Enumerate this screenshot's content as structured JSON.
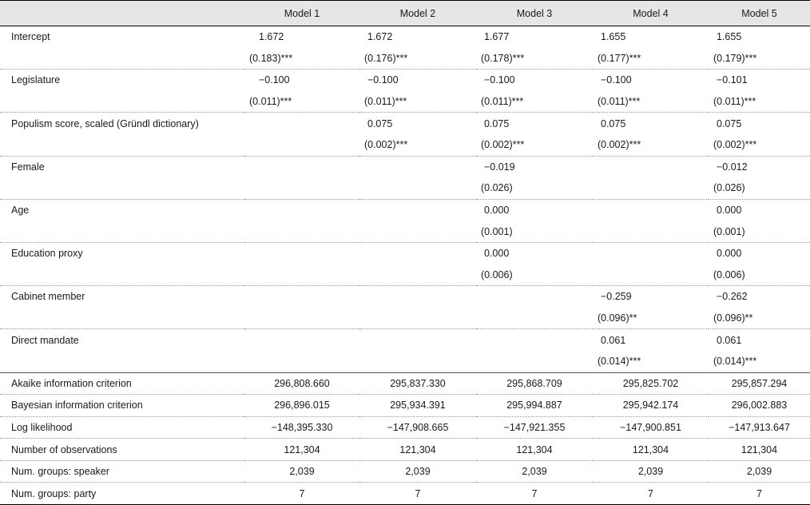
{
  "columns": [
    "",
    "Model 1",
    "Model 2",
    "Model 3",
    "Model 4",
    "Model 5"
  ],
  "coefficients": [
    {
      "label": "Intercept",
      "est": [
        "1.672",
        "1.672",
        "1.677",
        "1.655",
        "1.655"
      ],
      "se": [
        "(0.183)***",
        "(0.176)***",
        "(0.178)***",
        "(0.177)***",
        "(0.179)***"
      ]
    },
    {
      "label": "Legislature",
      "est": [
        "−0.100",
        "−0.100",
        "−0.100",
        "−0.100",
        "−0.101"
      ],
      "se": [
        "(0.011)***",
        "(0.011)***",
        "(0.011)***",
        "(0.011)***",
        "(0.011)***"
      ]
    },
    {
      "label": "Populism score, scaled (Gründl dictionary)",
      "est": [
        "",
        "0.075",
        "0.075",
        "0.075",
        "0.075"
      ],
      "se": [
        "",
        "(0.002)***",
        "(0.002)***",
        "(0.002)***",
        "(0.002)***"
      ]
    },
    {
      "label": "Female",
      "est": [
        "",
        "",
        "−0.019",
        "",
        "−0.012"
      ],
      "se": [
        "",
        "",
        "(0.026)",
        "",
        "(0.026)"
      ]
    },
    {
      "label": "Age",
      "est": [
        "",
        "",
        "0.000",
        "",
        "0.000"
      ],
      "se": [
        "",
        "",
        "(0.001)",
        "",
        "(0.001)"
      ]
    },
    {
      "label": "Education proxy",
      "est": [
        "",
        "",
        "0.000",
        "",
        "0.000"
      ],
      "se": [
        "",
        "",
        "(0.006)",
        "",
        "(0.006)"
      ]
    },
    {
      "label": "Cabinet member",
      "est": [
        "",
        "",
        "",
        "−0.259",
        "−0.262"
      ],
      "se": [
        "",
        "",
        "",
        "(0.096)**",
        "(0.096)**"
      ]
    },
    {
      "label": "Direct mandate",
      "est": [
        "",
        "",
        "",
        "0.061",
        "0.061"
      ],
      "se": [
        "",
        "",
        "",
        "(0.014)***",
        "(0.014)***"
      ]
    }
  ],
  "statistics": [
    {
      "label": "Akaike information criterion",
      "values": [
        "296,808.660",
        "295,837.330",
        "295,868.709",
        "295,825.702",
        "295,857.294"
      ]
    },
    {
      "label": "Bayesian information criterion",
      "values": [
        "296,896.015",
        "295,934.391",
        "295,994.887",
        "295,942.174",
        "296,002.883"
      ]
    },
    {
      "label": "Log likelihood",
      "values": [
        "−148,395.330",
        "−147,908.665",
        "−147,921.355",
        "−147,900.851",
        "−147,913.647"
      ]
    },
    {
      "label": "Number of observations",
      "values": [
        "121,304",
        "121,304",
        "121,304",
        "121,304",
        "121,304"
      ]
    },
    {
      "label": "Num. groups: speaker",
      "values": [
        "2,039",
        "2,039",
        "2,039",
        "2,039",
        "2,039"
      ]
    },
    {
      "label": "Num. groups: party",
      "values": [
        "7",
        "7",
        "7",
        "7",
        "7"
      ]
    }
  ]
}
